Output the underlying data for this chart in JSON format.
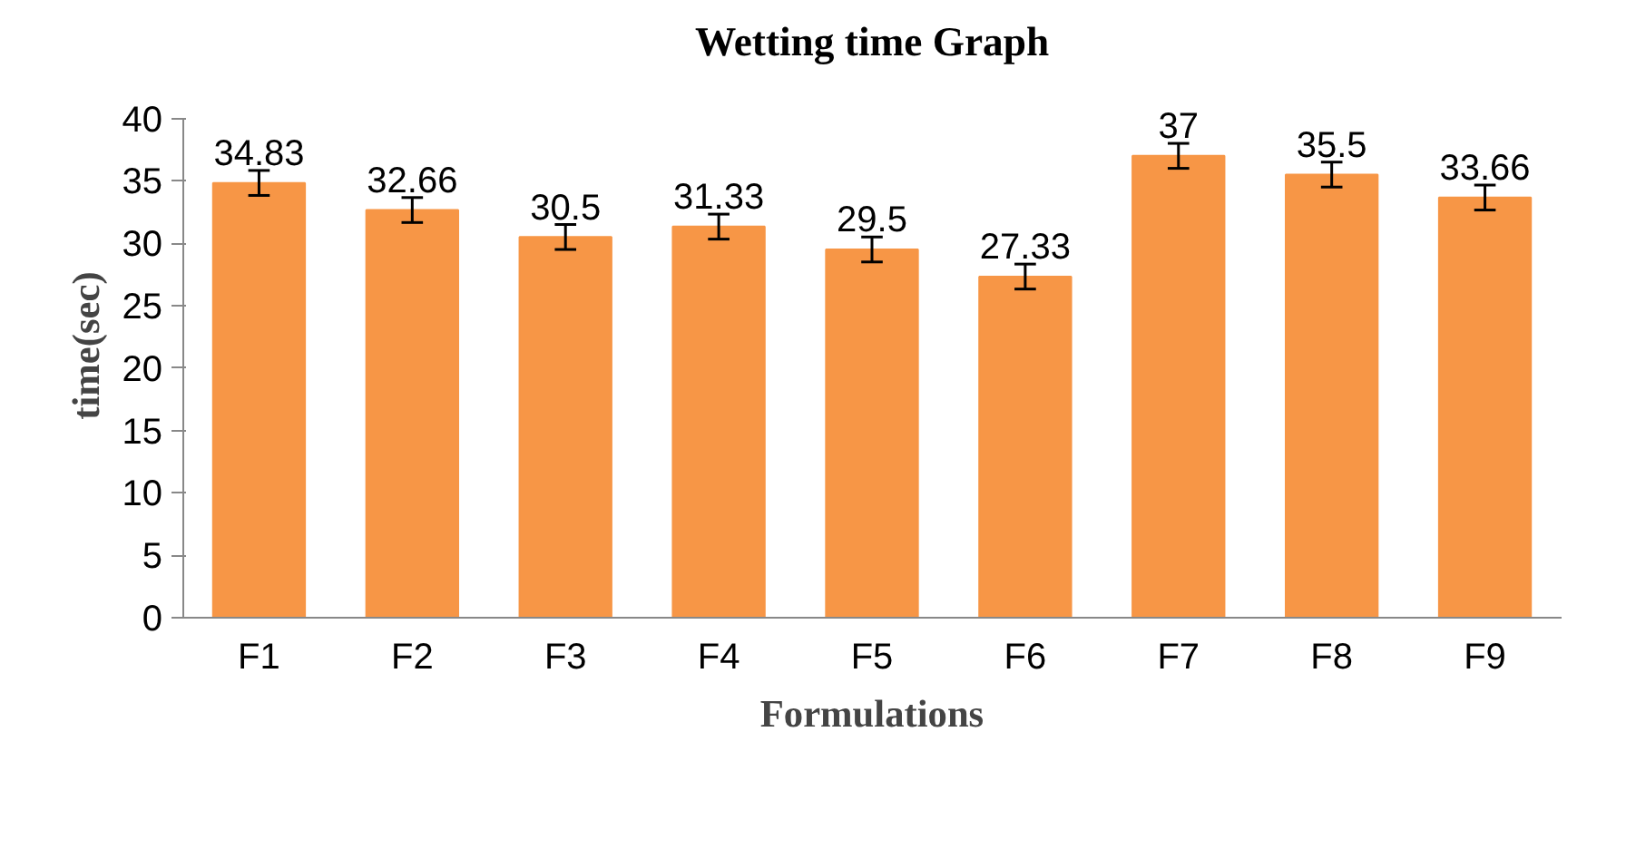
{
  "chart_data": {
    "type": "bar",
    "title": "Wetting time Graph",
    "xlabel": "Formulations",
    "ylabel": "time(sec)",
    "categories": [
      "F1",
      "F2",
      "F3",
      "F4",
      "F5",
      "F6",
      "F7",
      "F8",
      "F9"
    ],
    "values": [
      34.83,
      32.66,
      30.5,
      31.33,
      29.5,
      27.33,
      37,
      35.5,
      33.66
    ],
    "errors": [
      1,
      1,
      1,
      1,
      1,
      1,
      1,
      1,
      1
    ],
    "color": "#f79646",
    "ylim": [
      0,
      40
    ],
    "yticks": [
      0,
      5,
      10,
      15,
      20,
      25,
      30,
      35,
      40
    ],
    "grid": false,
    "data_labels": true
  }
}
